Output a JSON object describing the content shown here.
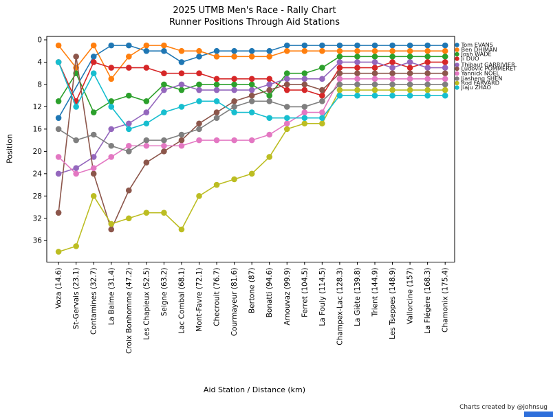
{
  "title": {
    "line1": "2025 UTMB Men's Race - Rally Chart",
    "line2": "Runner Positions Through Aid Stations"
  },
  "axes": {
    "x_label": "Aid Station / Distance (km)",
    "y_label": "Position"
  },
  "footer": {
    "credit": "Charts created by @johnsug"
  },
  "ui": {
    "corner_accent_color": "#2e6fdb",
    "background": "#ffffff",
    "text_color": "#000000"
  },
  "chart_data": {
    "type": "line",
    "title": "2025 UTMB Men's Race - Rally Chart — Runner Positions Through Aid Stations",
    "xlabel": "Aid Station / Distance (km)",
    "ylabel": "Position",
    "y_axis_inverted": true,
    "ylim": [
      0,
      39.8
    ],
    "grid": false,
    "legend_position": "right-of-plot, one label per line at its final value",
    "y_ticks": [
      0,
      4,
      8,
      12,
      16,
      20,
      24,
      28,
      32,
      36
    ],
    "x_categories": [
      "Voza (14.6)",
      "St-Gervais (23.1)",
      "Contamines (32.7)",
      "La Balme (31.4)",
      "Croix Bonhomme (47.2)",
      "Les Chapieux (52.5)",
      "Seigne (63.2)",
      "Lac Combal (68.1)",
      "Mont-Favre (72.1)",
      "Checrouit (76.7)",
      "Courmayeur (81.6)",
      "Bertone (87)",
      "Bonatti (94.6)",
      "Arnouvaz (99.9)",
      "Ferret (104.5)",
      "La Fouly (114.5)",
      "Champex-Lac (128.3)",
      "La Giète (139.8)",
      "Trient (144.9)",
      "Les Tseppes (148.9)",
      "Vallorcine (157)",
      "La Flégère (168.3)",
      "Chamonix (175.4)"
    ],
    "series": [
      {
        "name": "Tom EVANS",
        "color": "#1f77b4",
        "values": [
          14,
          null,
          3,
          1,
          1,
          2,
          2,
          4,
          3,
          2,
          2,
          2,
          2,
          1,
          1,
          1,
          1,
          1,
          1,
          1,
          1,
          1,
          1
        ]
      },
      {
        "name": "Ben DHIMAN",
        "color": "#ff7f0e",
        "values": [
          1,
          5,
          1,
          7,
          3,
          1,
          1,
          2,
          2,
          3,
          3,
          3,
          3,
          2,
          2,
          2,
          2,
          2,
          2,
          2,
          2,
          2,
          2
        ]
      },
      {
        "name": "Josh WADE",
        "color": "#2ca02c",
        "values": [
          11,
          6,
          13,
          11,
          10,
          11,
          8,
          9,
          8,
          8,
          8,
          8,
          10,
          6,
          6,
          5,
          3,
          3,
          3,
          3,
          3,
          3,
          3
        ]
      },
      {
        "name": "Ji DUO",
        "color": "#d62728",
        "values": [
          4,
          11,
          4,
          5,
          5,
          5,
          6,
          6,
          6,
          7,
          7,
          7,
          7,
          9,
          9,
          10,
          5,
          5,
          5,
          4,
          5,
          4,
          4
        ]
      },
      {
        "name": "Thibaut GARRIVIER",
        "color": "#9467bd",
        "values": [
          24,
          23,
          21,
          16,
          15,
          13,
          9,
          8,
          9,
          9,
          9,
          9,
          8,
          7,
          7,
          7,
          4,
          4,
          4,
          5,
          4,
          5,
          5
        ]
      },
      {
        "name": "Ludovic POMMERET",
        "color": "#8c564b",
        "values": [
          31,
          3,
          24,
          34,
          27,
          22,
          20,
          18,
          15,
          13,
          11,
          10,
          9,
          8,
          8,
          9,
          6,
          6,
          6,
          6,
          6,
          6,
          6
        ]
      },
      {
        "name": "Yannick NOEL",
        "color": "#e377c2",
        "values": [
          21,
          24,
          23,
          21,
          19,
          19,
          19,
          19,
          18,
          18,
          18,
          18,
          17,
          15,
          13,
          13,
          7,
          7,
          7,
          7,
          7,
          7,
          7
        ]
      },
      {
        "name": "Jiasheng SHEN",
        "color": "#7f7f7f",
        "values": [
          16,
          18,
          17,
          19,
          20,
          18,
          18,
          17,
          16,
          14,
          12,
          11,
          11,
          12,
          12,
          11,
          8,
          8,
          8,
          8,
          8,
          8,
          8
        ]
      },
      {
        "name": "Rod FARVARD",
        "color": "#bcbd22",
        "values": [
          38,
          37,
          28,
          33,
          32,
          31,
          31,
          34,
          28,
          26,
          25,
          24,
          21,
          16,
          15,
          15,
          9,
          9,
          9,
          9,
          9,
          9,
          9
        ]
      },
      {
        "name": "Jiaju ZHAO",
        "color": "#17becf",
        "values": [
          4,
          12,
          6,
          12,
          16,
          15,
          13,
          12,
          11,
          11,
          13,
          13,
          14,
          14,
          14,
          14,
          10,
          10,
          10,
          10,
          10,
          10,
          10
        ]
      }
    ]
  }
}
